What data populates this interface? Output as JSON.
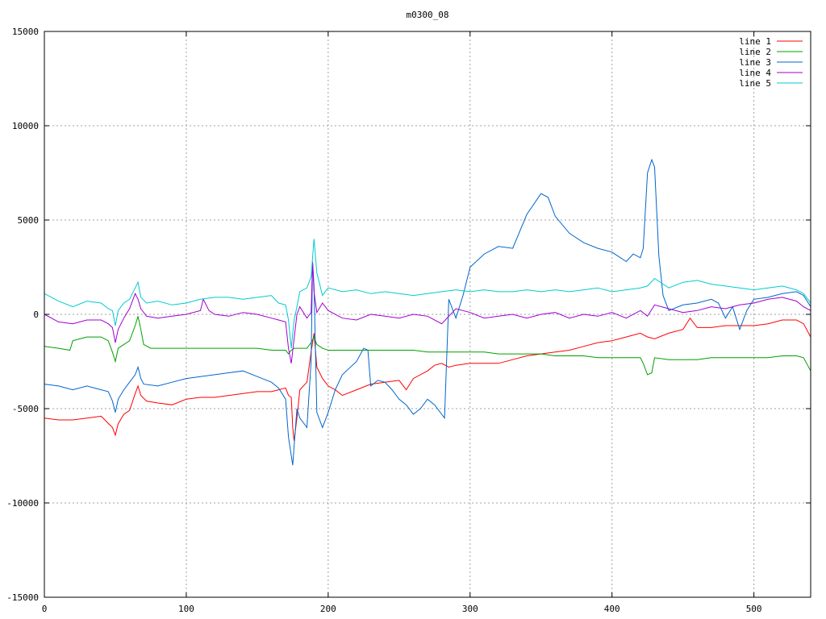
{
  "chart_data": {
    "type": "line",
    "title": "m0300_08",
    "xlabel": "",
    "ylabel": "",
    "xlim": [
      0,
      540
    ],
    "ylim": [
      -15000,
      15000
    ],
    "grid": true,
    "legend_position": "top-right",
    "xticks": [
      0,
      100,
      200,
      300,
      400,
      500
    ],
    "yticks": [
      -15000,
      -10000,
      -5000,
      0,
      5000,
      10000,
      15000
    ],
    "series": [
      {
        "name": "line 1",
        "color": "#ff0000",
        "x": [
          0,
          10,
          20,
          30,
          40,
          48,
          50,
          52,
          56,
          60,
          64,
          66,
          68,
          72,
          80,
          90,
          100,
          110,
          120,
          130,
          140,
          150,
          160,
          165,
          170,
          172,
          174,
          175,
          176,
          178,
          180,
          185,
          188,
          190,
          192,
          196,
          200,
          205,
          210,
          220,
          230,
          240,
          250,
          255,
          260,
          270,
          275,
          280,
          285,
          290,
          300,
          310,
          320,
          330,
          340,
          350,
          360,
          370,
          380,
          390,
          400,
          410,
          420,
          425,
          430,
          440,
          450,
          455,
          460,
          470,
          480,
          490,
          500,
          510,
          520,
          530,
          535,
          540
        ],
        "y": [
          -5500,
          -5600,
          -5600,
          -5500,
          -5400,
          -6000,
          -6400,
          -5800,
          -5300,
          -5100,
          -4200,
          -3800,
          -4300,
          -4600,
          -4700,
          -4800,
          -4500,
          -4400,
          -4400,
          -4300,
          -4200,
          -4100,
          -4100,
          -4000,
          -3900,
          -4300,
          -4400,
          -6000,
          -6700,
          -5500,
          -4000,
          -3600,
          -2000,
          -1000,
          -2800,
          -3400,
          -3800,
          -4000,
          -4300,
          -4000,
          -3700,
          -3600,
          -3500,
          -4000,
          -3400,
          -3000,
          -2700,
          -2600,
          -2800,
          -2700,
          -2600,
          -2600,
          -2600,
          -2400,
          -2200,
          -2100,
          -2000,
          -1900,
          -1700,
          -1500,
          -1400,
          -1200,
          -1000,
          -1200,
          -1300,
          -1000,
          -800,
          -200,
          -700,
          -700,
          -600,
          -600,
          -600,
          -500,
          -300,
          -300,
          -500,
          -1200
        ]
      },
      {
        "name": "line 2",
        "color": "#00a000",
        "x": [
          0,
          10,
          18,
          20,
          25,
          30,
          40,
          45,
          48,
          50,
          52,
          56,
          60,
          64,
          66,
          68,
          70,
          75,
          80,
          90,
          100,
          110,
          120,
          130,
          140,
          150,
          160,
          170,
          172,
          174,
          176,
          180,
          185,
          188,
          190,
          192,
          196,
          200,
          210,
          220,
          230,
          240,
          250,
          260,
          270,
          280,
          290,
          300,
          310,
          320,
          330,
          340,
          350,
          360,
          370,
          380,
          390,
          400,
          410,
          420,
          422,
          425,
          428,
          430,
          440,
          450,
          460,
          470,
          480,
          490,
          500,
          510,
          520,
          530,
          535,
          540
        ],
        "y": [
          -1700,
          -1800,
          -1900,
          -1400,
          -1300,
          -1200,
          -1200,
          -1400,
          -2000,
          -2500,
          -1800,
          -1600,
          -1400,
          -600,
          -100,
          -800,
          -1600,
          -1800,
          -1800,
          -1800,
          -1800,
          -1800,
          -1800,
          -1800,
          -1800,
          -1800,
          -1900,
          -1900,
          -2100,
          -1900,
          -1800,
          -1800,
          -1800,
          -1500,
          -1200,
          -1600,
          -1800,
          -1900,
          -1900,
          -1900,
          -1900,
          -1900,
          -1900,
          -1900,
          -2000,
          -2000,
          -2000,
          -2000,
          -2000,
          -2100,
          -2100,
          -2100,
          -2100,
          -2200,
          -2200,
          -2200,
          -2300,
          -2300,
          -2300,
          -2300,
          -2600,
          -3200,
          -3100,
          -2300,
          -2400,
          -2400,
          -2400,
          -2300,
          -2300,
          -2300,
          -2300,
          -2300,
          -2200,
          -2200,
          -2300,
          -3000
        ]
      },
      {
        "name": "line 3",
        "color": "#0066cc",
        "x": [
          0,
          10,
          20,
          30,
          40,
          45,
          48,
          50,
          52,
          56,
          60,
          64,
          66,
          68,
          70,
          80,
          90,
          100,
          110,
          120,
          130,
          140,
          150,
          160,
          165,
          170,
          172,
          174,
          175,
          176,
          178,
          180,
          185,
          188,
          189,
          190,
          192,
          196,
          200,
          205,
          210,
          220,
          225,
          228,
          230,
          235,
          240,
          245,
          250,
          255,
          260,
          265,
          270,
          275,
          280,
          282,
          285,
          290,
          295,
          300,
          310,
          320,
          330,
          340,
          350,
          355,
          360,
          370,
          380,
          390,
          400,
          410,
          415,
          420,
          422,
          425,
          428,
          430,
          433,
          436,
          440,
          450,
          460,
          470,
          475,
          480,
          485,
          490,
          495,
          500,
          510,
          520,
          530,
          535,
          540
        ],
        "y": [
          -3700,
          -3800,
          -4000,
          -3800,
          -4000,
          -4100,
          -4600,
          -5200,
          -4500,
          -4000,
          -3600,
          -3200,
          -2800,
          -3400,
          -3700,
          -3800,
          -3600,
          -3400,
          -3300,
          -3200,
          -3100,
          -3000,
          -3300,
          -3600,
          -3900,
          -4500,
          -6500,
          -7500,
          -8000,
          -7000,
          -5000,
          -5500,
          -6000,
          -2500,
          2800,
          1500,
          -5200,
          -6000,
          -5200,
          -4000,
          -3200,
          -2500,
          -1800,
          -1900,
          -3800,
          -3500,
          -3600,
          -4000,
          -4500,
          -4800,
          -5300,
          -5000,
          -4500,
          -4800,
          -5300,
          -5500,
          800,
          -200,
          1000,
          2500,
          3200,
          3600,
          3500,
          5300,
          6400,
          6200,
          5200,
          4300,
          3800,
          3500,
          3300,
          2800,
          3200,
          3000,
          3500,
          7500,
          8200,
          7800,
          3100,
          1000,
          200,
          500,
          600,
          800,
          600,
          -200,
          400,
          -800,
          200,
          800,
          900,
          1100,
          1200,
          1000,
          400
        ]
      },
      {
        "name": "line 4",
        "color": "#a000d0",
        "x": [
          0,
          10,
          20,
          30,
          40,
          45,
          48,
          50,
          52,
          56,
          60,
          64,
          66,
          68,
          72,
          80,
          90,
          100,
          110,
          112,
          116,
          120,
          130,
          140,
          150,
          160,
          165,
          170,
          172,
          174,
          176,
          178,
          180,
          185,
          188,
          189,
          190,
          192,
          196,
          200,
          210,
          220,
          230,
          240,
          250,
          260,
          270,
          280,
          290,
          300,
          310,
          320,
          330,
          340,
          350,
          360,
          370,
          380,
          390,
          400,
          410,
          420,
          425,
          430,
          440,
          450,
          460,
          470,
          480,
          490,
          500,
          510,
          520,
          530,
          535,
          540
        ],
        "y": [
          0,
          -400,
          -500,
          -300,
          -300,
          -500,
          -700,
          -1500,
          -800,
          -200,
          300,
          1100,
          800,
          300,
          -100,
          -200,
          -100,
          0,
          200,
          800,
          200,
          0,
          -100,
          100,
          0,
          -200,
          -300,
          -400,
          -1800,
          -2600,
          -1300,
          0,
          400,
          -200,
          100,
          2800,
          1200,
          100,
          600,
          200,
          -200,
          -300,
          0,
          -100,
          -200,
          0,
          -100,
          -500,
          300,
          100,
          -200,
          -100,
          0,
          -200,
          0,
          100,
          -200,
          0,
          -100,
          100,
          -200,
          200,
          -100,
          500,
          300,
          100,
          200,
          400,
          300,
          500,
          600,
          800,
          900,
          700,
          400,
          200
        ]
      },
      {
        "name": "line 5",
        "color": "#00cccc",
        "x": [
          0,
          10,
          20,
          30,
          40,
          45,
          48,
          50,
          52,
          56,
          60,
          64,
          66,
          68,
          72,
          80,
          90,
          100,
          110,
          120,
          130,
          140,
          150,
          160,
          165,
          170,
          172,
          174,
          176,
          178,
          180,
          185,
          188,
          190,
          192,
          196,
          200,
          210,
          220,
          230,
          240,
          250,
          260,
          270,
          280,
          290,
          300,
          310,
          320,
          330,
          340,
          350,
          360,
          370,
          380,
          390,
          400,
          410,
          420,
          425,
          430,
          440,
          450,
          460,
          470,
          480,
          490,
          500,
          510,
          520,
          530,
          535,
          540
        ],
        "y": [
          1100,
          700,
          400,
          700,
          600,
          300,
          200,
          -600,
          200,
          600,
          800,
          1400,
          1700,
          900,
          600,
          700,
          500,
          600,
          800,
          900,
          900,
          800,
          900,
          1000,
          600,
          500,
          -300,
          -1800,
          -300,
          400,
          1200,
          1400,
          2000,
          4000,
          2200,
          1000,
          1400,
          1200,
          1300,
          1100,
          1200,
          1100,
          1000,
          1100,
          1200,
          1300,
          1200,
          1300,
          1200,
          1200,
          1300,
          1200,
          1300,
          1200,
          1300,
          1400,
          1200,
          1300,
          1400,
          1500,
          1900,
          1400,
          1700,
          1800,
          1600,
          1500,
          1400,
          1300,
          1400,
          1500,
          1300,
          1100,
          600
        ]
      }
    ]
  }
}
